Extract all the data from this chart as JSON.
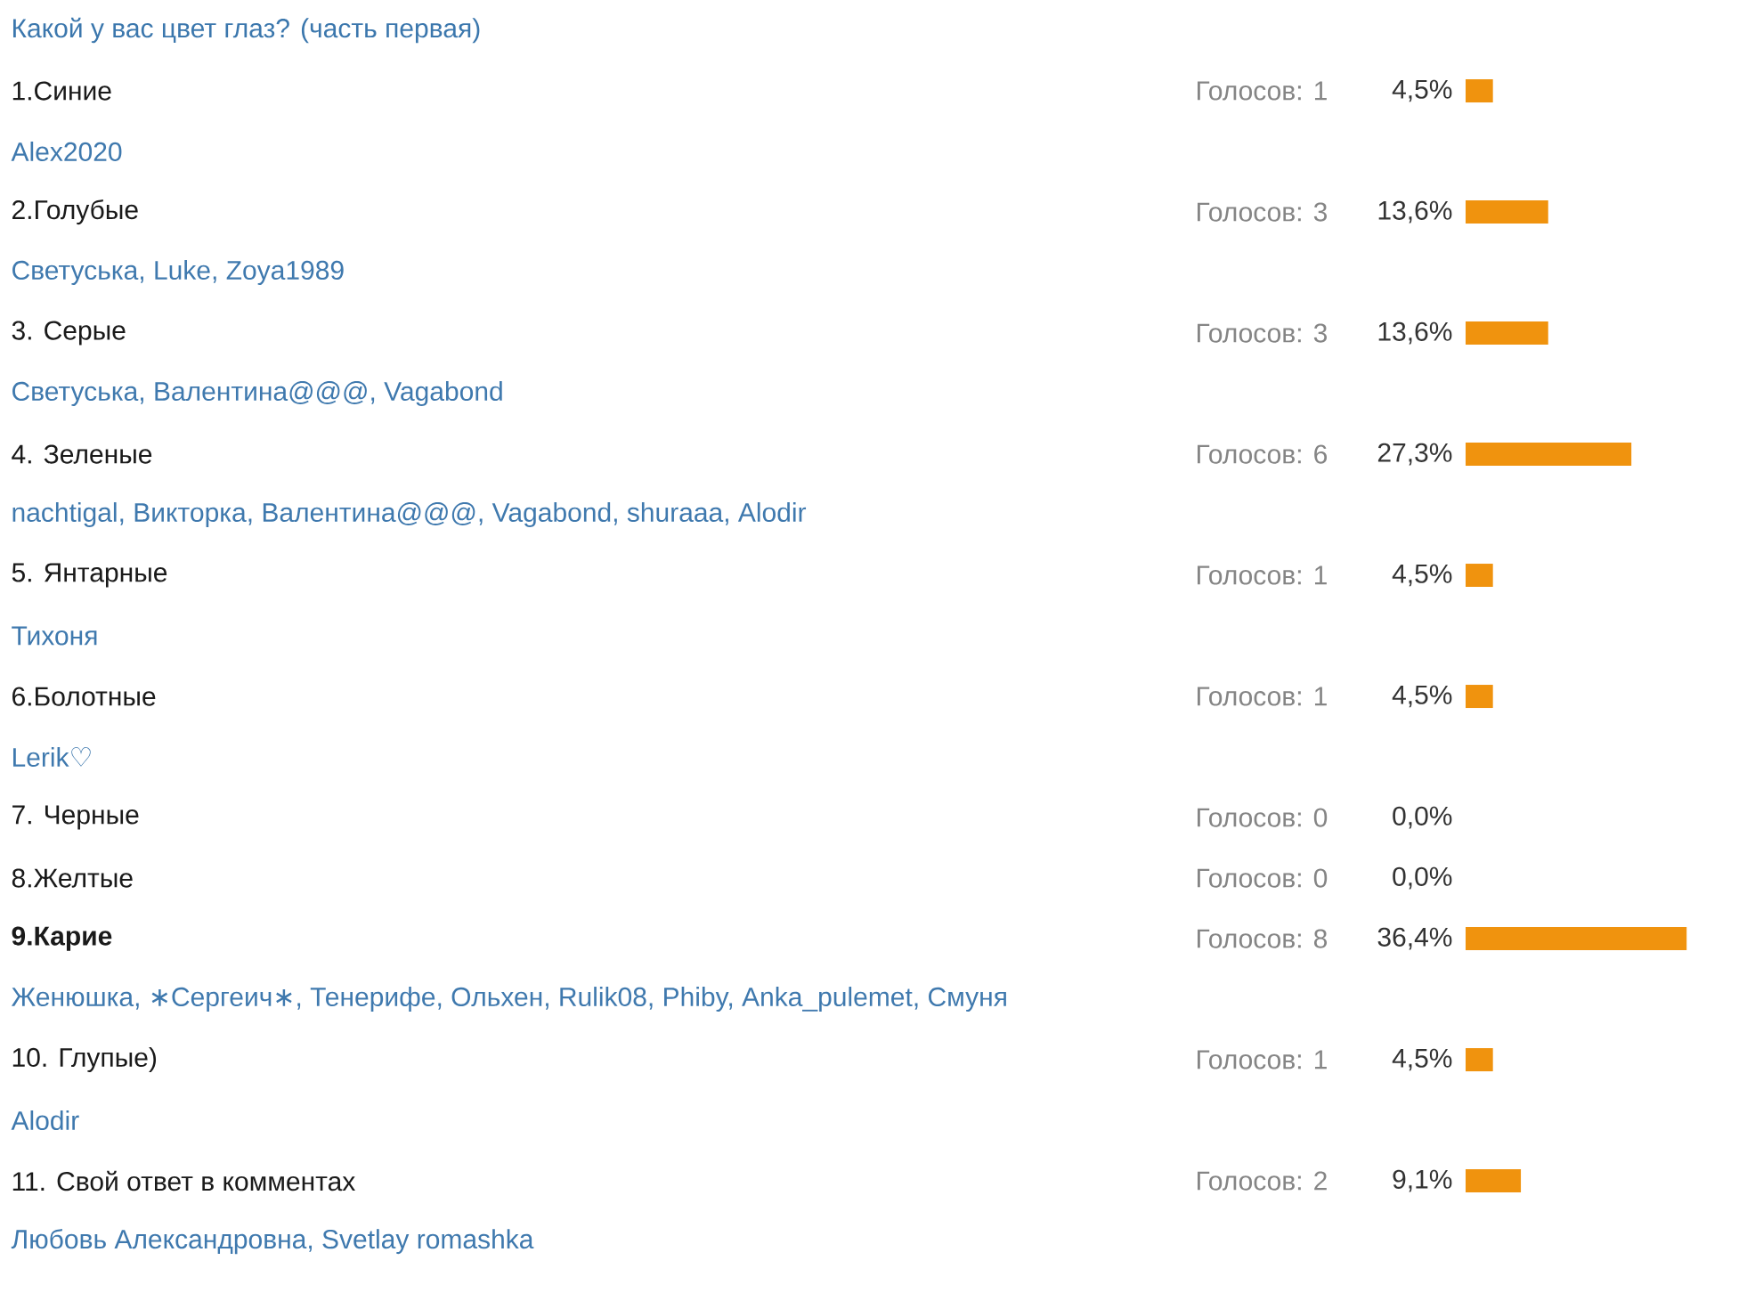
{
  "chart_data": {
    "type": "bar",
    "orientation": "horizontal",
    "title": "Какой у вас цвет глаз? (часть первая)",
    "categories": [
      "1.Синие",
      "2.Голубые",
      "3. Серые",
      "4. Зеленые",
      "5. Янтарные",
      "6.Болотные",
      "7. Черные",
      "8.Желтые",
      "**9.Карие**",
      "10. Глупые)",
      "11. Свой ответ в комментах"
    ],
    "values": [
      4.5,
      13.6,
      13.6,
      27.3,
      4.5,
      4.5,
      0,
      0,
      36.4,
      4.5,
      9.1
    ],
    "value_labels": [
      "4,5%",
      "13,6%",
      "13,6%",
      "27,3%",
      "4,5%",
      "4,5%",
      "0,0%",
      "0,0%",
      "36,4%",
      "4,5%",
      "9,1%"
    ],
    "color": "#f0930e",
    "tick_labels": "y",
    "annotations": [
      "Голосов: 1",
      "Голосов: 3",
      "Голосов: 3",
      "Голосов: 6",
      "Голосов: 1",
      "Голосов: 1",
      "Голосов: 0",
      "Голосов: 0",
      "Голосов: 8",
      "Голосов: 1",
      "Голосов: 2",
      "Alex2020",
      "Светуська, Luke, Zoya1989",
      "Светуська, Валентина@@@, Vagabond",
      "nachtigal, Викторка, Валентина@@@, Vagabond, shuraaa, Alodir",
      "Тихоня",
      "Lerik♡",
      "Женюшка, ∗Сергеич∗, Тенерифе, Ольхен, Rulik08, Phiby, Anka_pulemet, Смуня",
      "Alodir",
      "Любовь Александровна, Svetlay romashka"
    ]
  }
}
